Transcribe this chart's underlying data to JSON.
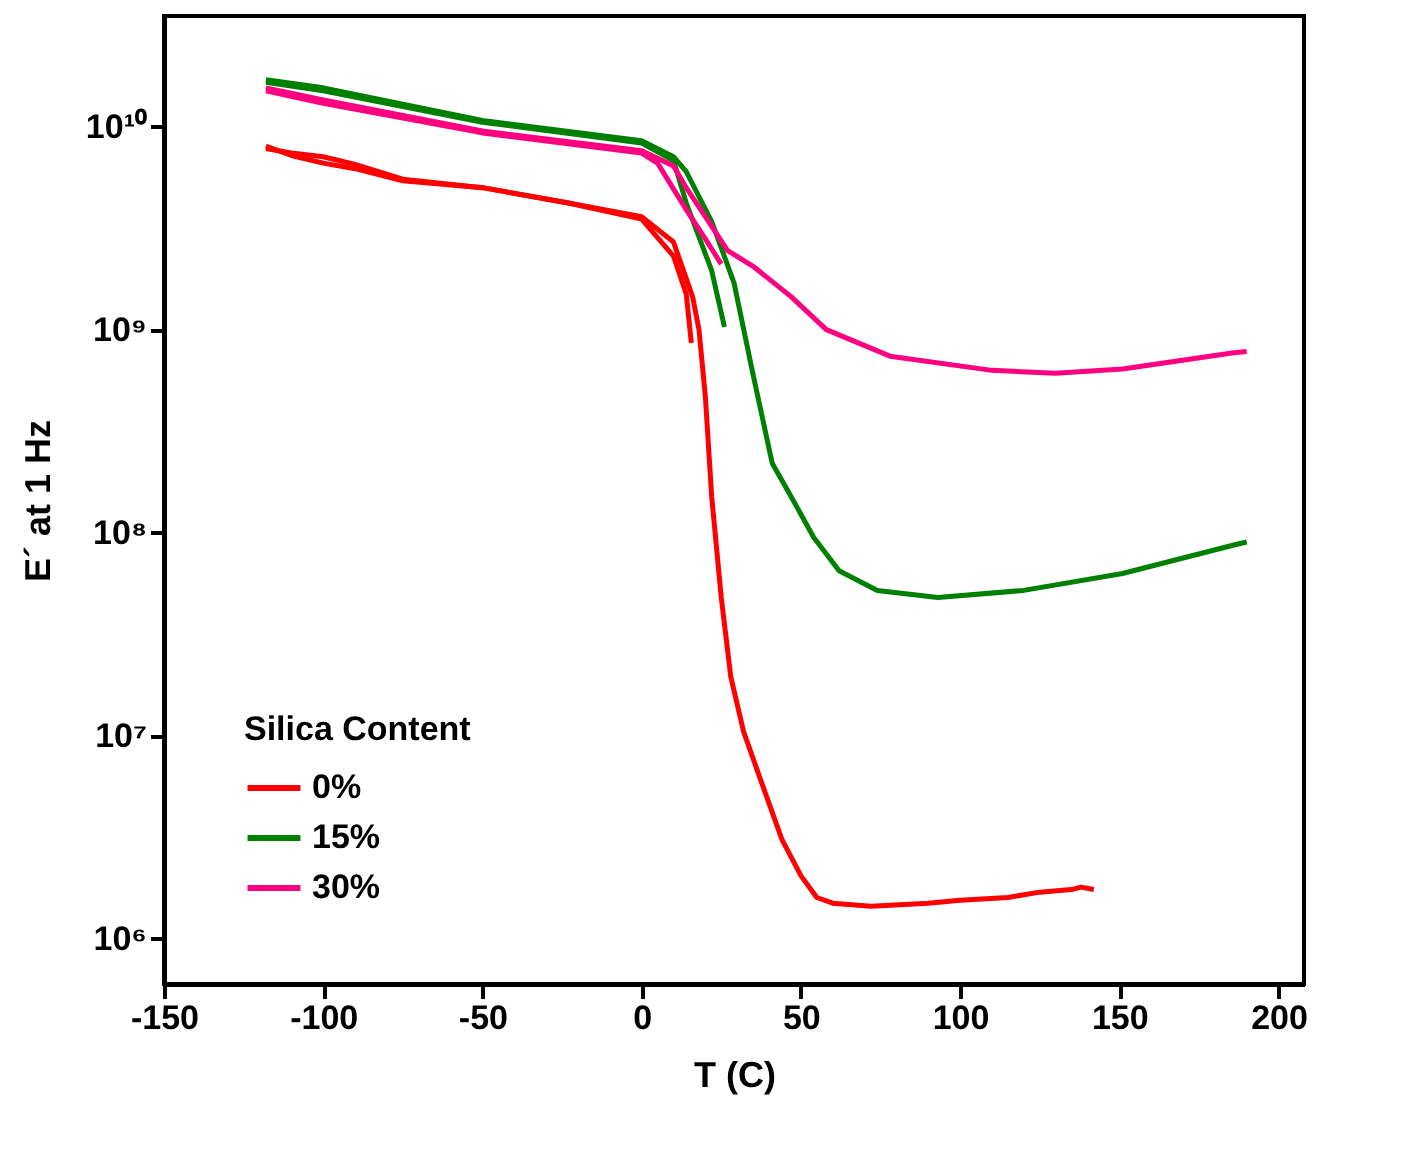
{
  "chart_data": {
    "type": "line",
    "xlabel": "T (C)",
    "ylabel": "E´ at 1 Hz",
    "legend_title": "Silica Content",
    "legend": "bottom left",
    "log": "y",
    "grid": false,
    "xlim": [
      -150,
      208
    ],
    "xticks": [
      -150,
      -100,
      -50,
      0,
      50,
      100,
      150,
      200
    ],
    "ylim": [
      600000,
      35000000000
    ],
    "yticks": [
      {
        "value": 1000000,
        "label": "10⁶"
      },
      {
        "value": 10000000,
        "label": "10⁷"
      },
      {
        "value": 100000000,
        "label": "10⁸"
      },
      {
        "value": 1000000000,
        "label": "10⁹"
      },
      {
        "value": 10000000000,
        "label": "10¹⁰"
      }
    ],
    "series": [
      {
        "name": "0%",
        "color": "#ff0000",
        "x": [
          -118,
          -110,
          -100,
          -90,
          -75,
          -50,
          -23,
          0,
          10,
          16,
          18,
          20,
          22,
          25,
          28,
          32,
          37,
          44,
          50,
          55,
          60,
          72,
          90,
          100,
          115,
          125,
          135,
          138,
          142
        ],
        "values": [
          8000000000,
          7200000000,
          6600000000,
          6200000000,
          5400000000,
          5000000000,
          4200000000,
          3600000000,
          2700000000,
          1450000000,
          1000000000,
          470000000,
          150000000,
          48000000,
          19500000,
          10500000,
          6300000,
          3100000,
          2050000,
          1600000,
          1500000,
          1450000,
          1500000,
          1550000,
          1600000,
          1700000,
          1750000,
          1800000,
          1750000
        ]
      },
      {
        "color": "#ff0000",
        "x": [
          -118,
          -110,
          -100,
          -90,
          -75,
          -50,
          -23,
          0,
          10,
          14,
          15.6
        ],
        "values": [
          7800000000,
          7400000000,
          7100000000,
          6500000000,
          5500000000,
          5000000000,
          4200000000,
          3500000000,
          2300000000,
          1500000000,
          860000000
        ]
      },
      {
        "name": "15%",
        "color": "#008000",
        "x": [
          -118,
          -100,
          -50,
          0,
          10,
          14,
          22,
          29,
          35,
          41,
          47,
          54,
          62,
          74,
          93,
          120,
          151,
          186,
          190
        ],
        "values": [
          17000000000,
          15500000000,
          10700000000,
          8500000000,
          7100000000,
          6000000000,
          3400000000,
          1700000000,
          600000000,
          220000000,
          150000000,
          95000000,
          65000000,
          52000000,
          48000000,
          52000000,
          63000000,
          87000000,
          90000000
        ]
      },
      {
        "color": "#008000",
        "x": [
          -118,
          -100,
          -50,
          0,
          10,
          14,
          22,
          26
        ],
        "values": [
          16500000000,
          15000000000,
          10500000000,
          8300000000,
          6800000000,
          4200000000,
          1950000000,
          1030000000
        ]
      },
      {
        "name": "30%",
        "color": "#ff0080",
        "x": [
          -118,
          -100,
          -50,
          0,
          10,
          14,
          20,
          27,
          35,
          47,
          58,
          78,
          110,
          130,
          151,
          186,
          190
        ],
        "values": [
          15500000000,
          13500000000,
          9500000000,
          7600000000,
          6400000000,
          5000000000,
          3600000000,
          2450000000,
          2050000000,
          1450000000,
          1000000000,
          740000000,
          630000000,
          610000000,
          640000000,
          770000000,
          780000000
        ]
      },
      {
        "color": "#ff0080",
        "x": [
          -118,
          -100,
          -50,
          0,
          5,
          14,
          20,
          25
        ],
        "values": [
          15000000000,
          13000000000,
          9300000000,
          7400000000,
          6600000000,
          3900000000,
          2800000000,
          2100000000
        ]
      }
    ]
  }
}
